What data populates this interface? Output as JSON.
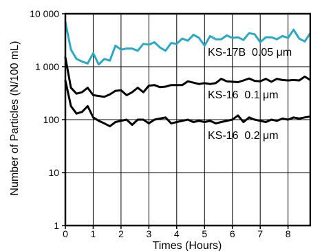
{
  "chart_data": {
    "type": "line",
    "title": "",
    "xlabel": "Times (Hours)",
    "ylabel": "Number of Particles (N/100 mL)",
    "xlim": [
      0,
      8.8
    ],
    "ylim": [
      1,
      10000
    ],
    "yscale": "log",
    "grid": true,
    "x_ticks": [
      0,
      1,
      2,
      3,
      4,
      5,
      6,
      7,
      8
    ],
    "x_tick_labels": [
      "0",
      "1",
      "2",
      "3",
      "4",
      "5",
      "6",
      "7",
      "8"
    ],
    "y_ticks": [
      1,
      10,
      100,
      1000,
      10000
    ],
    "y_tick_labels": [
      "1",
      "10",
      "100",
      "1 000",
      "10 000"
    ],
    "x": [
      0,
      0.2,
      0.4,
      0.6,
      0.8,
      1.0,
      1.2,
      1.4,
      1.6,
      1.8,
      2.0,
      2.2,
      2.4,
      2.6,
      2.8,
      3.0,
      3.2,
      3.4,
      3.6,
      3.8,
      4.0,
      4.2,
      4.4,
      4.6,
      4.8,
      5.0,
      5.2,
      5.4,
      5.6,
      5.8,
      6.0,
      6.2,
      6.4,
      6.6,
      6.8,
      7.0,
      7.2,
      7.4,
      7.6,
      7.8,
      8.0,
      8.2,
      8.4,
      8.6,
      8.8
    ],
    "series": [
      {
        "name": "KS-17B  0.05 μm",
        "color": "#2aa8c4",
        "values": [
          7000,
          2100,
          1400,
          1250,
          1150,
          1800,
          1100,
          1400,
          1300,
          2500,
          2100,
          2200,
          2200,
          2000,
          2700,
          2600,
          2900,
          2300,
          2000,
          2800,
          2700,
          3400,
          3100,
          4000,
          3500,
          2500,
          3800,
          3300,
          3300,
          3900,
          3500,
          3600,
          3200,
          4300,
          4100,
          2900,
          3600,
          3600,
          3300,
          3800,
          3500,
          5000,
          3400,
          3000,
          4300
        ]
      },
      {
        "name": "KS-16  0.1 μm",
        "color": "#000000",
        "values": [
          1500,
          400,
          310,
          330,
          400,
          290,
          280,
          270,
          300,
          350,
          360,
          290,
          330,
          400,
          330,
          440,
          450,
          410,
          420,
          450,
          450,
          450,
          530,
          500,
          470,
          490,
          470,
          490,
          590,
          530,
          520,
          510,
          550,
          600,
          540,
          530,
          590,
          520,
          590,
          560,
          550,
          560,
          550,
          650,
          560
        ]
      },
      {
        "name": "KS-16  0.2 μm",
        "color": "#000000",
        "values": [
          550,
          180,
          130,
          140,
          180,
          110,
          95,
          85,
          75,
          90,
          95,
          100,
          80,
          100,
          100,
          85,
          100,
          105,
          110,
          85,
          90,
          95,
          100,
          90,
          95,
          90,
          95,
          85,
          90,
          95,
          100,
          120,
          90,
          110,
          100,
          95,
          90,
          100,
          95,
          105,
          100,
          110,
          105,
          110,
          115
        ]
      }
    ]
  }
}
